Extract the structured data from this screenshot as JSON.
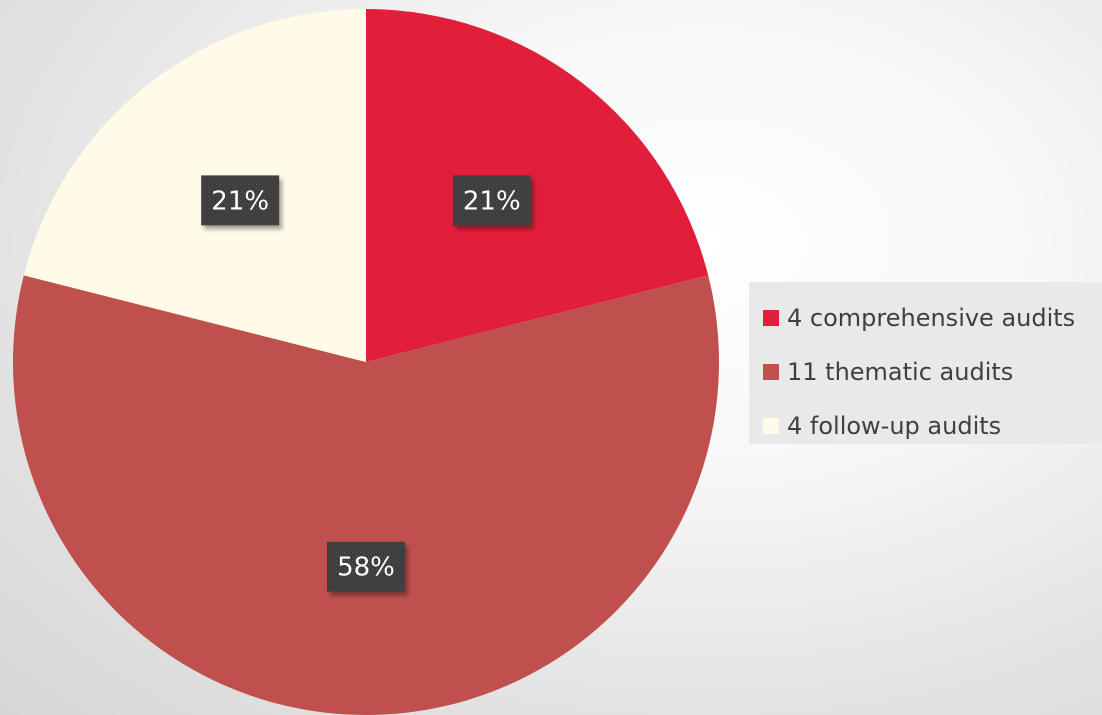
{
  "chart_data": {
    "type": "pie",
    "slices": [
      {
        "label": "4 comprehensive audits",
        "value": 4,
        "percent_label": "21%",
        "color": "#e11f3a"
      },
      {
        "label": "11 thematic audits",
        "value": 11,
        "percent_label": "58%",
        "color": "#c0504d"
      },
      {
        "label": "4 follow-up audits",
        "value": 4,
        "percent_label": "21%",
        "color": "#fffbe8"
      }
    ],
    "start_angle": "12 o'clock",
    "direction": "clockwise",
    "legend_position": "right"
  }
}
